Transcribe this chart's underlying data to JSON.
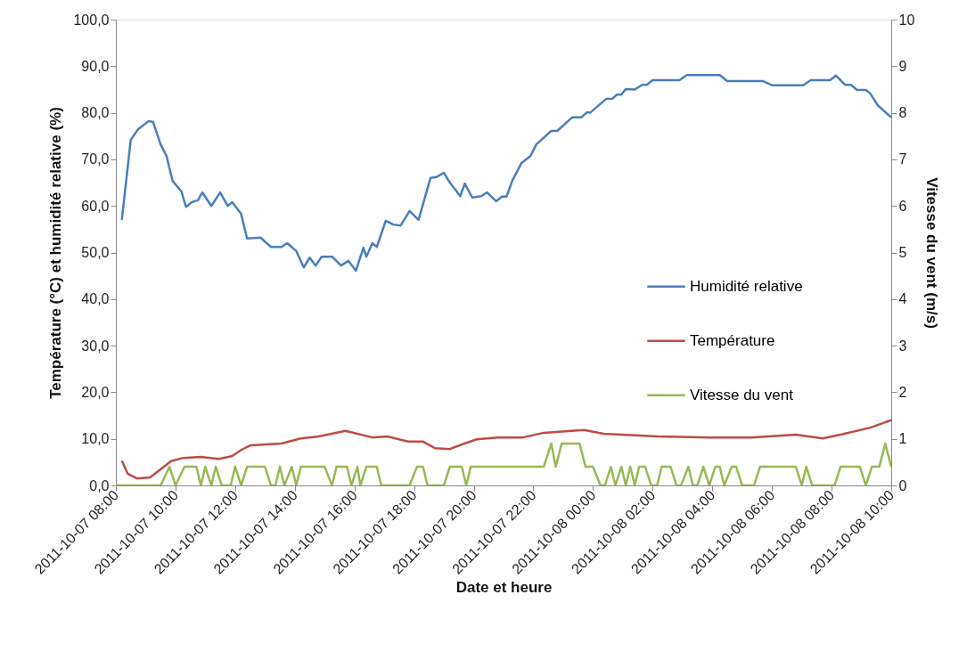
{
  "chart_data": {
    "type": "line",
    "xlabel": "Date et heure",
    "ylabel": "Température (°C) et humidité relative (%)",
    "y2label": "Vitesse du vent (m/s)",
    "xlim": [
      "2011-10-07T08:00",
      "2011-10-08T10:00"
    ],
    "xticks": [
      {
        "value": "2011-10-07T08:00",
        "label": "2011-10-07 08:00"
      },
      {
        "value": "2011-10-07T10:00",
        "label": "2011-10-07 10:00"
      },
      {
        "value": "2011-10-07T12:00",
        "label": "2011-10-07 12:00"
      },
      {
        "value": "2011-10-07T14:00",
        "label": "2011-10-07 14:00"
      },
      {
        "value": "2011-10-07T16:00",
        "label": "2011-10-07 16:00"
      },
      {
        "value": "2011-10-07T18:00",
        "label": "2011-10-07 18:00"
      },
      {
        "value": "2011-10-07T20:00",
        "label": "2011-10-07 20:00"
      },
      {
        "value": "2011-10-07T22:00",
        "label": "2011-10-07 22:00"
      },
      {
        "value": "2011-10-08T00:00",
        "label": "2011-10-08 00:00"
      },
      {
        "value": "2011-10-08T02:00",
        "label": "2011-10-08 02:00"
      },
      {
        "value": "2011-10-08T04:00",
        "label": "2011-10-08 04:00"
      },
      {
        "value": "2011-10-08T06:00",
        "label": "2011-10-08 06:00"
      },
      {
        "value": "2011-10-08T08:00",
        "label": "2011-10-08 08:00"
      },
      {
        "value": "2011-10-08T10:00",
        "label": "2011-10-08 10:00"
      }
    ],
    "ylim": [
      0,
      100
    ],
    "yticks": [
      {
        "value": 0,
        "label": "0,0"
      },
      {
        "value": 10,
        "label": "10,0"
      },
      {
        "value": 20,
        "label": "20,0"
      },
      {
        "value": 30,
        "label": "30,0"
      },
      {
        "value": 40,
        "label": "40,0"
      },
      {
        "value": 50,
        "label": "50,0"
      },
      {
        "value": 60,
        "label": "60,0"
      },
      {
        "value": 70,
        "label": "70,0"
      },
      {
        "value": 80,
        "label": "80,0"
      },
      {
        "value": 90,
        "label": "90,0"
      },
      {
        "value": 100,
        "label": "100,0"
      }
    ],
    "y2lim": [
      0,
      10
    ],
    "y2ticks": [
      0,
      1,
      2,
      3,
      4,
      5,
      6,
      7,
      8,
      9,
      10
    ],
    "grid": false,
    "legend": "right",
    "marker": "none",
    "line_style": "solid",
    "series": [
      {
        "name": "Humidité relative",
        "color": "#4a7ebb",
        "x": [
          "2011-10-07T08:12",
          "2011-10-07T08:30",
          "2011-10-07T08:45",
          "2011-10-07T09:06",
          "2011-10-07T09:15",
          "2011-10-07T09:30",
          "2011-10-07T09:42",
          "2011-10-07T09:54",
          "2011-10-07T10:12",
          "2011-10-07T10:21",
          "2011-10-07T10:33",
          "2011-10-07T10:45",
          "2011-10-07T10:54",
          "2011-10-07T11:12",
          "2011-10-07T11:30",
          "2011-10-07T11:45",
          "2011-10-07T11:54",
          "2011-10-07T12:12",
          "2011-10-07T12:24",
          "2011-10-07T12:51",
          "2011-10-07T13:12",
          "2011-10-07T13:33",
          "2011-10-07T13:45",
          "2011-10-07T14:03",
          "2011-10-07T14:18",
          "2011-10-07T14:30",
          "2011-10-07T14:42",
          "2011-10-07T14:54",
          "2011-10-07T15:15",
          "2011-10-07T15:33",
          "2011-10-07T15:48",
          "2011-10-07T16:03",
          "2011-10-07T16:18",
          "2011-10-07T16:24",
          "2011-10-07T16:36",
          "2011-10-07T16:45",
          "2011-10-07T17:03",
          "2011-10-07T17:18",
          "2011-10-07T17:33",
          "2011-10-07T17:51",
          "2011-10-07T18:09",
          "2011-10-07T18:33",
          "2011-10-07T18:45",
          "2011-10-07T19:00",
          "2011-10-07T19:12",
          "2011-10-07T19:33",
          "2011-10-07T19:42",
          "2011-10-07T19:57",
          "2011-10-07T20:15",
          "2011-10-07T20:27",
          "2011-10-07T20:45",
          "2011-10-07T20:57",
          "2011-10-07T21:06",
          "2011-10-07T21:18",
          "2011-10-07T21:36",
          "2011-10-07T21:54",
          "2011-10-07T22:06",
          "2011-10-07T22:36",
          "2011-10-07T22:48",
          "2011-10-07T23:18",
          "2011-10-07T23:36",
          "2011-10-07T23:48",
          "2011-10-07T23:54",
          "2011-10-08T00:27",
          "2011-10-08T00:39",
          "2011-10-08T00:48",
          "2011-10-08T00:57",
          "2011-10-08T01:06",
          "2011-10-08T01:24",
          "2011-10-08T01:39",
          "2011-10-08T01:48",
          "2011-10-08T02:00",
          "2011-10-08T02:54",
          "2011-10-08T03:09",
          "2011-10-08T04:15",
          "2011-10-08T04:30",
          "2011-10-08T05:42",
          "2011-10-08T06:00",
          "2011-10-08T07:03",
          "2011-10-08T07:18",
          "2011-10-08T07:57",
          "2011-10-08T08:09",
          "2011-10-08T08:27",
          "2011-10-08T08:39",
          "2011-10-08T08:51",
          "2011-10-08T09:09",
          "2011-10-08T09:18",
          "2011-10-08T09:33",
          "2011-10-08T10:00"
        ],
        "values": [
          57.0,
          74.2,
          76.5,
          78.2,
          78.0,
          73.2,
          70.7,
          65.4,
          63.1,
          59.8,
          60.8,
          61.2,
          62.9,
          60.0,
          62.9,
          60.0,
          60.8,
          58.3,
          53.0,
          53.2,
          51.2,
          51.2,
          52.0,
          50.3,
          46.8,
          48.9,
          47.2,
          49.1,
          49.1,
          47.2,
          48.2,
          46.1,
          51.0,
          49.1,
          52.0,
          51.2,
          56.8,
          56.0,
          55.8,
          58.9,
          57.0,
          66.0,
          66.2,
          67.1,
          65.0,
          62.1,
          64.8,
          61.8,
          62.1,
          62.9,
          61.0,
          62.0,
          62.0,
          65.5,
          69.2,
          70.7,
          73.2,
          76.1,
          76.1,
          79.0,
          79.0,
          80.1,
          80.0,
          83.0,
          83.0,
          83.9,
          83.9,
          85.1,
          85.0,
          86.0,
          86.0,
          87.0,
          87.0,
          88.1,
          88.1,
          86.8,
          86.8,
          85.9,
          85.9,
          87.0,
          87.0,
          88.0,
          86.0,
          86.0,
          84.9,
          84.9,
          84.1,
          81.6,
          79.0
        ]
      },
      {
        "name": "Température",
        "color": "#be4b48",
        "x": [
          "2011-10-07T08:12",
          "2011-10-07T08:24",
          "2011-10-07T08:42",
          "2011-10-07T09:09",
          "2011-10-07T09:27",
          "2011-10-07T09:51",
          "2011-10-07T10:15",
          "2011-10-07T10:51",
          "2011-10-07T11:27",
          "2011-10-07T11:54",
          "2011-10-07T12:12",
          "2011-10-07T12:30",
          "2011-10-07T13:33",
          "2011-10-07T14:12",
          "2011-10-07T14:48",
          "2011-10-07T15:42",
          "2011-10-07T16:36",
          "2011-10-07T17:06",
          "2011-10-07T17:48",
          "2011-10-07T18:18",
          "2011-10-07T18:42",
          "2011-10-07T19:12",
          "2011-10-07T19:36",
          "2011-10-07T20:06",
          "2011-10-07T20:48",
          "2011-10-07T21:39",
          "2011-10-07T22:21",
          "2011-10-07T23:42",
          "2011-10-08T00:21",
          "2011-10-08T02:09",
          "2011-10-08T03:57",
          "2011-10-08T05:18",
          "2011-10-08T06:48",
          "2011-10-08T07:42",
          "2011-10-08T08:18",
          "2011-10-08T09:18",
          "2011-10-08T10:00"
        ],
        "values": [
          5.3,
          2.5,
          1.5,
          1.7,
          3.2,
          5.2,
          5.9,
          6.1,
          5.7,
          6.3,
          7.6,
          8.6,
          9.0,
          10.1,
          10.5,
          11.7,
          10.3,
          10.5,
          9.4,
          9.4,
          8.0,
          7.8,
          8.8,
          9.9,
          10.3,
          10.3,
          11.3,
          11.9,
          11.1,
          10.5,
          10.3,
          10.3,
          10.9,
          10.1,
          10.9,
          12.4,
          14.0
        ]
      },
      {
        "name": "Vitesse du vent",
        "color": "#98b954",
        "axis": "y2",
        "x": [
          "2011-10-07T08:00",
          "2011-10-07T09:30",
          "2011-10-07T09:48",
          "2011-10-07T10:00",
          "2011-10-07T10:18",
          "2011-10-07T10:42",
          "2011-10-07T10:51",
          "2011-10-07T11:00",
          "2011-10-07T11:12",
          "2011-10-07T11:21",
          "2011-10-07T11:33",
          "2011-10-07T11:51",
          "2011-10-07T12:00",
          "2011-10-07T12:12",
          "2011-10-07T12:24",
          "2011-10-07T13:00",
          "2011-10-07T13:12",
          "2011-10-07T13:21",
          "2011-10-07T13:30",
          "2011-10-07T13:39",
          "2011-10-07T13:54",
          "2011-10-07T14:03",
          "2011-10-07T14:12",
          "2011-10-07T15:00",
          "2011-10-07T15:15",
          "2011-10-07T15:24",
          "2011-10-07T15:45",
          "2011-10-07T15:54",
          "2011-10-07T16:06",
          "2011-10-07T16:12",
          "2011-10-07T16:24",
          "2011-10-07T16:45",
          "2011-10-07T16:54",
          "2011-10-07T17:51",
          "2011-10-07T18:06",
          "2011-10-07T18:18",
          "2011-10-07T18:27",
          "2011-10-07T19:00",
          "2011-10-07T19:12",
          "2011-10-07T19:36",
          "2011-10-07T19:45",
          "2011-10-07T19:54",
          "2011-10-07T22:21",
          "2011-10-07T22:36",
          "2011-10-07T22:45",
          "2011-10-07T22:57",
          "2011-10-07T23:33",
          "2011-10-07T23:45",
          "2011-10-08T00:00",
          "2011-10-08T00:15",
          "2011-10-08T00:24",
          "2011-10-08T00:36",
          "2011-10-08T00:45",
          "2011-10-08T00:57",
          "2011-10-08T01:06",
          "2011-10-08T01:15",
          "2011-10-08T01:24",
          "2011-10-08T01:33",
          "2011-10-08T01:45",
          "2011-10-08T01:57",
          "2011-10-08T02:09",
          "2011-10-08T02:18",
          "2011-10-08T02:36",
          "2011-10-08T02:48",
          "2011-10-08T02:57",
          "2011-10-08T03:12",
          "2011-10-08T03:21",
          "2011-10-08T03:30",
          "2011-10-08T03:42",
          "2011-10-08T03:54",
          "2011-10-08T04:06",
          "2011-10-08T04:15",
          "2011-10-08T04:24",
          "2011-10-08T04:39",
          "2011-10-08T04:48",
          "2011-10-08T05:00",
          "2011-10-08T05:24",
          "2011-10-08T05:36",
          "2011-10-08T06:48",
          "2011-10-08T07:00",
          "2011-10-08T07:09",
          "2011-10-08T07:21",
          "2011-10-08T08:06",
          "2011-10-08T08:18",
          "2011-10-08T08:57",
          "2011-10-08T09:09",
          "2011-10-08T09:21",
          "2011-10-08T09:36",
          "2011-10-08T09:48",
          "2011-10-08T10:00"
        ],
        "values": [
          0,
          0,
          0.4,
          0,
          0.4,
          0.4,
          0,
          0.4,
          0,
          0.4,
          0,
          0,
          0.4,
          0,
          0.4,
          0.4,
          0,
          0,
          0.4,
          0,
          0.4,
          0,
          0.4,
          0.4,
          0,
          0.4,
          0.4,
          0,
          0.4,
          0,
          0.4,
          0.4,
          0,
          0,
          0.4,
          0.4,
          0,
          0,
          0.4,
          0.4,
          0,
          0.4,
          0.4,
          0.9,
          0.4,
          0.9,
          0.9,
          0.4,
          0.4,
          0,
          0,
          0.4,
          0,
          0.4,
          0,
          0.4,
          0,
          0.4,
          0.4,
          0,
          0,
          0.4,
          0.4,
          0,
          0,
          0.4,
          0,
          0,
          0.4,
          0,
          0.4,
          0.4,
          0,
          0.4,
          0.4,
          0,
          0,
          0.4,
          0.4,
          0,
          0.4,
          0,
          0,
          0.4,
          0.4,
          0,
          0.4,
          0.4,
          0.9,
          0.4
        ]
      }
    ]
  }
}
